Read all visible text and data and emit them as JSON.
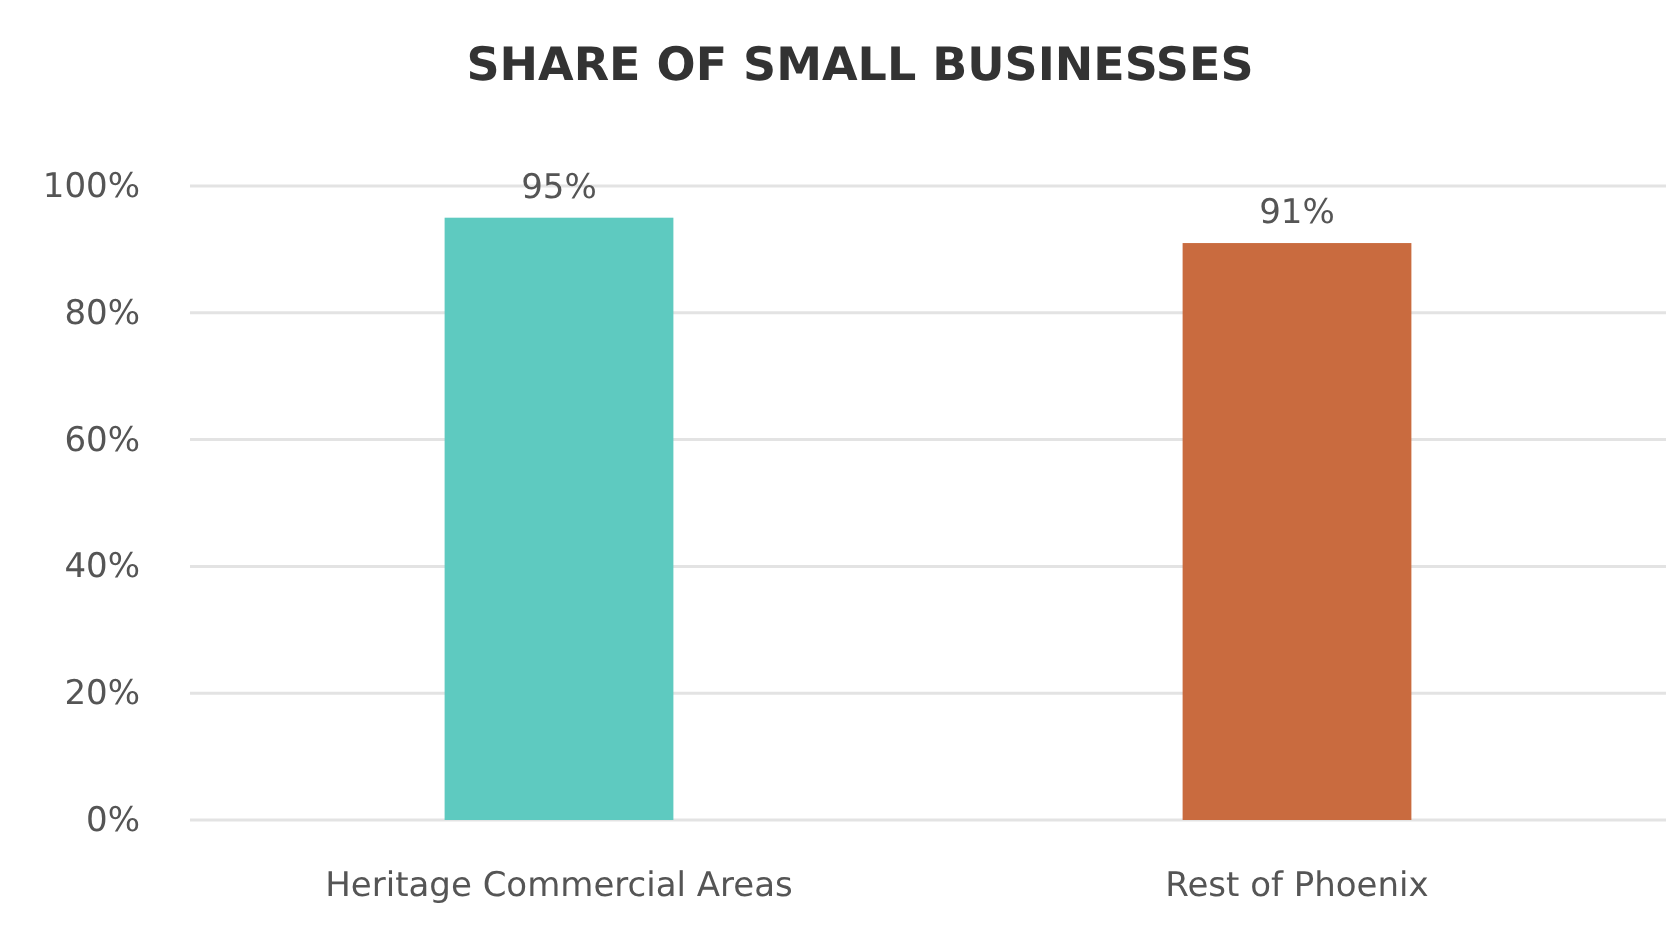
{
  "chart_data": {
    "type": "bar",
    "title": "SHARE OF SMALL BUSINESSES",
    "categories": [
      "Heritage Commercial Areas",
      "Rest of Phoenix"
    ],
    "values": [
      95,
      91
    ],
    "colors": [
      "#5ecac0",
      "#c96b3f"
    ],
    "value_labels": [
      "95%",
      "91%"
    ],
    "ylim": [
      0,
      100
    ],
    "yticks": [
      {
        "value": 0,
        "label": "0%"
      },
      {
        "value": 20,
        "label": "20%"
      },
      {
        "value": 40,
        "label": "40%"
      },
      {
        "value": 60,
        "label": "60%"
      },
      {
        "value": 80,
        "label": "80%"
      },
      {
        "value": 100,
        "label": "100%"
      }
    ],
    "grid": "y"
  }
}
